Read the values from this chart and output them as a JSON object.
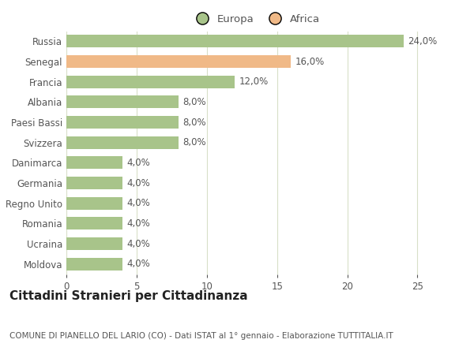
{
  "categories": [
    "Russia",
    "Senegal",
    "Francia",
    "Albania",
    "Paesi Bassi",
    "Svizzera",
    "Danimarca",
    "Germania",
    "Regno Unito",
    "Romania",
    "Ucraina",
    "Moldova"
  ],
  "values": [
    24.0,
    16.0,
    12.0,
    8.0,
    8.0,
    8.0,
    4.0,
    4.0,
    4.0,
    4.0,
    4.0,
    4.0
  ],
  "colors": [
    "#a8c48a",
    "#f0b987",
    "#a8c48a",
    "#a8c48a",
    "#a8c48a",
    "#a8c48a",
    "#a8c48a",
    "#a8c48a",
    "#a8c48a",
    "#a8c48a",
    "#a8c48a",
    "#a8c48a"
  ],
  "legend_labels": [
    "Europa",
    "Africa"
  ],
  "legend_colors": [
    "#a8c48a",
    "#f0b987"
  ],
  "title": "Cittadini Stranieri per Cittadinanza",
  "subtitle": "COMUNE DI PIANELLO DEL LARIO (CO) - Dati ISTAT al 1° gennaio - Elaborazione TUTTITALIA.IT",
  "xlim": [
    0,
    27
  ],
  "xticks": [
    0,
    5,
    10,
    15,
    20,
    25
  ],
  "background_color": "#ffffff",
  "grid_color": "#d8dfc8",
  "bar_height": 0.62,
  "label_fontsize": 8.5,
  "title_fontsize": 11,
  "subtitle_fontsize": 7.5,
  "tick_fontsize": 8.5,
  "legend_fontsize": 9.5
}
